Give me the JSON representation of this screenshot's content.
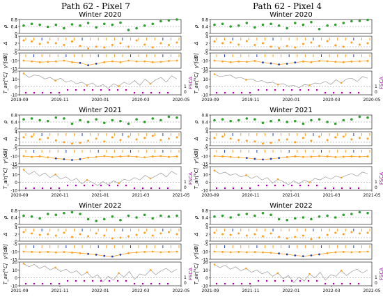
{
  "figure": {
    "columns": [
      "Path 62 - Pixel 7",
      "Path 62 - Pixel 4"
    ]
  },
  "panel_labels": {
    "rho": "ρ",
    "delta": "Δ",
    "gamma": "γ⁰[dB]",
    "tair": "T_air[°C]",
    "fsca": "FSCA"
  },
  "colors": {
    "rho": "#2ca02c",
    "delta": "#ff9f1a",
    "gamma_line": "#ff9f1a",
    "gamma_dots": "#1f3fbf",
    "tair": "#9a9a9a",
    "fsca": "#b000b0",
    "snow_marker": "#1f3fbf",
    "event_marker": "#ff9f1a"
  },
  "chart_data": [
    {
      "type": "line",
      "column": "Path 62 - Pixel 7",
      "title": "Winter 2020",
      "x_ticks": [
        "2019-09",
        "2019-11",
        "2020-01",
        "2020-03",
        "2020-05"
      ],
      "rho": {
        "ylim": [
          0,
          0.8
        ],
        "ticks": [
          "0.8",
          "0.4",
          "0"
        ],
        "values": [
          0.45,
          0.55,
          0.5,
          0.38,
          0.5,
          0.3,
          0.52,
          0.45,
          0.6,
          0.35,
          0.55,
          0.5,
          0.62,
          0.2,
          0.3,
          0.45,
          0.55,
          0.7,
          0.75,
          0.8
        ]
      },
      "delta": {
        "ylim": [
          0,
          4
        ],
        "ticks": [
          "4",
          "2",
          "0"
        ],
        "values": [
          2.8,
          2.5,
          1.8,
          2.2,
          2.0,
          1.5,
          2.5,
          1.2,
          0.5,
          1.0,
          0.8,
          1.5,
          2.0,
          1.0,
          2.8,
          1.6,
          0.8,
          2.0,
          1.5,
          2.2
        ]
      },
      "gamma": {
        "ylim": [
          -15,
          -5
        ],
        "ticks": [
          "-5",
          "-10",
          "-15"
        ],
        "values": [
          -10,
          -10.5,
          -11,
          -10.8,
          -10.5,
          -10,
          -11,
          -11.5,
          -13,
          -12,
          -11,
          -10.5,
          -11,
          -10,
          -10.5,
          -10.5,
          -11,
          -10.8,
          -10.2,
          -10
        ]
      },
      "tair": {
        "ylim": [
          -10,
          20
        ],
        "ticks": [
          "20",
          "10",
          "0",
          "-10"
        ],
        "values": [
          17,
          12,
          15,
          14,
          10,
          12,
          8,
          11,
          6,
          8,
          4,
          6,
          2,
          5,
          0,
          3,
          -2,
          4,
          1,
          6,
          3,
          8,
          2,
          10,
          4,
          9,
          12,
          6,
          14,
          10
        ]
      },
      "fsca_ticks": [
        "1",
        "0"
      ]
    },
    {
      "type": "line",
      "column": "Path 62 - Pixel 4",
      "title": "Winter 2020",
      "x_ticks": [
        "2019-09",
        "2019-11",
        "2020-01",
        "2020-03",
        "2020-05"
      ],
      "rho": {
        "ylim": [
          0,
          0.8
        ],
        "ticks": [
          "0.8",
          "0.4",
          "0"
        ],
        "values": [
          0.5,
          0.55,
          0.4,
          0.45,
          0.6,
          0.35,
          0.5,
          0.55,
          0.45,
          0.3,
          0.6,
          0.5,
          0.65,
          0.25,
          0.45,
          0.5,
          0.6,
          0.7,
          0.72,
          0.78
        ]
      },
      "delta": {
        "ylim": [
          0,
          4
        ],
        "ticks": [
          "4",
          "2",
          "0"
        ],
        "values": [
          2.5,
          2.0,
          2.2,
          1.6,
          2.6,
          1.5,
          2.0,
          1.0,
          0.6,
          1.2,
          0.8,
          1.8,
          2.2,
          1.2,
          2.6,
          1.4,
          1.0,
          2.2,
          1.6,
          2.0
        ]
      },
      "gamma": {
        "ylim": [
          -15,
          -5
        ],
        "ticks": [
          "-5",
          "-10",
          "-15"
        ],
        "values": [
          -10,
          -10.5,
          -11,
          -10.6,
          -10.8,
          -10.2,
          -11.2,
          -11.8,
          -12.5,
          -12,
          -11.2,
          -10.6,
          -11,
          -10.2,
          -10.4,
          -10.8,
          -11,
          -10.6,
          -10.4,
          -10.2
        ]
      },
      "tair": {
        "ylim": [
          -10,
          20
        ],
        "ticks": [
          "20",
          "10",
          "0",
          "-10"
        ],
        "values": [
          16,
          13,
          14,
          15,
          11,
          12,
          9,
          10,
          7,
          8,
          5,
          6,
          3,
          4,
          1,
          2,
          -1,
          3,
          2,
          5,
          4,
          7,
          3,
          9,
          5,
          10,
          11,
          7,
          13,
          11
        ]
      },
      "fsca_ticks": [
        "1",
        "0"
      ]
    },
    {
      "type": "line",
      "column": "Path 62 - Pixel 7",
      "title": "Winter 2021",
      "x_ticks": [
        "2020-09",
        "2020-11",
        "2021-01",
        "2021-03",
        "2021-05"
      ],
      "rho": {
        "ylim": [
          0,
          0.8
        ],
        "ticks": [
          "0.8",
          "0.4",
          "0"
        ],
        "values": [
          0.55,
          0.6,
          0.5,
          0.45,
          0.65,
          0.6,
          0.3,
          0.5,
          0.4,
          0.55,
          0.35,
          0.5,
          0.45,
          0.3,
          0.55,
          0.4,
          0.6,
          0.5,
          0.7,
          0.65
        ]
      },
      "delta": {
        "ylim": [
          0,
          4
        ],
        "ticks": [
          "4",
          "2",
          "0"
        ],
        "values": [
          2.4,
          2.6,
          1.8,
          2.2,
          1.5,
          1.0,
          0.6,
          0.8,
          1.4,
          2.0,
          1.2,
          2.4,
          1.6,
          2.6,
          1.8,
          2.2,
          2.8,
          1.6,
          2.0,
          2.4
        ]
      },
      "gamma": {
        "ylim": [
          -15,
          -5
        ],
        "ticks": [
          "-5",
          "-10",
          "-15"
        ],
        "values": [
          -10,
          -10.5,
          -10.2,
          -10.8,
          -11.5,
          -12,
          -12.5,
          -12,
          -11,
          -10.5,
          -10,
          -10.6,
          -10.2,
          -10,
          -10.4,
          -10.8,
          -10.2,
          -10,
          -10.5,
          -10.2
        ]
      },
      "tair": {
        "ylim": [
          -10,
          20
        ],
        "ticks": [
          "20",
          "10",
          "0",
          "-10"
        ],
        "values": [
          16,
          10,
          14,
          8,
          12,
          6,
          10,
          4,
          7,
          2,
          5,
          -2,
          3,
          0,
          -4,
          1,
          -3,
          2,
          -1,
          4,
          2,
          6,
          3,
          9,
          5,
          8,
          12,
          7,
          14,
          10
        ]
      },
      "fsca_ticks": [
        "1",
        "0"
      ]
    },
    {
      "type": "line",
      "column": "Path 62 - Pixel 4",
      "title": "Winter 2021",
      "x_ticks": [
        "2020-09",
        "2020-11",
        "2021-01",
        "2021-03",
        "2021-05"
      ],
      "rho": {
        "ylim": [
          0,
          0.8
        ],
        "ticks": [
          "0.8",
          "0.4",
          "0"
        ],
        "values": [
          0.5,
          0.55,
          0.45,
          0.5,
          0.6,
          0.55,
          0.35,
          0.45,
          0.5,
          0.4,
          0.45,
          0.3,
          0.5,
          0.55,
          0.4,
          0.3,
          0.5,
          0.55,
          0.7,
          0.65
        ]
      },
      "delta": {
        "ylim": [
          0,
          4
        ],
        "ticks": [
          "4",
          "2",
          "0"
        ],
        "values": [
          2.2,
          2.6,
          2.0,
          1.6,
          1.4,
          1.2,
          0.6,
          0.8,
          1.6,
          1.8,
          1.0,
          2.2,
          1.4,
          2.6,
          1.6,
          2.4,
          2.6,
          1.8,
          2.2,
          2.0
        ]
      },
      "gamma": {
        "ylim": [
          -15,
          -5
        ],
        "ticks": [
          "-5",
          "-10",
          "-15"
        ],
        "values": [
          -10,
          -10.2,
          -10.5,
          -10.8,
          -11.2,
          -11.8,
          -12.2,
          -11.8,
          -11.2,
          -10.6,
          -10.2,
          -10.5,
          -10.4,
          -10,
          -10.2,
          -10.6,
          -10.4,
          -10.2,
          -10.4,
          -10.2
        ]
      },
      "tair": {
        "ylim": [
          -10,
          20
        ],
        "ticks": [
          "20",
          "10",
          "0",
          "-10"
        ],
        "values": [
          15,
          11,
          13,
          9,
          11,
          7,
          9,
          5,
          8,
          3,
          6,
          -1,
          4,
          1,
          -3,
          2,
          -2,
          3,
          0,
          5,
          3,
          7,
          4,
          8,
          6,
          9,
          11,
          8,
          13,
          11
        ]
      },
      "fsca_ticks": [
        "1",
        "0"
      ]
    },
    {
      "type": "line",
      "column": "Path 62 - Pixel 7",
      "title": "Winter 2022",
      "x_ticks": [
        "2021-09",
        "2021-11",
        "2022-01",
        "2022-03",
        "2022-05"
      ],
      "rho": {
        "ylim": [
          0,
          0.8
        ],
        "ticks": [
          "0.8",
          "0.4",
          "0"
        ],
        "values": [
          0.5,
          0.45,
          0.35,
          0.6,
          0.55,
          0.65,
          0.7,
          0.6,
          0.3,
          0.2,
          0.3,
          0.45,
          0.25,
          0.5,
          0.4,
          0.55,
          0.35,
          0.5,
          0.45,
          0.5
        ]
      },
      "delta": {
        "ylim": [
          0,
          4
        ],
        "ticks": [
          "4",
          "2",
          "0"
        ],
        "values": [
          2.6,
          2.2,
          1.8,
          2.0,
          1.6,
          2.4,
          1.2,
          2.0,
          1.4,
          2.2,
          1.6,
          0.8,
          1.0,
          1.4,
          1.8,
          2.4,
          1.6,
          2.2,
          2.6,
          2.0
        ]
      },
      "gamma": {
        "ylim": [
          -15,
          -5
        ],
        "ticks": [
          "-5",
          "-10",
          "-15"
        ],
        "values": [
          -10,
          -10.2,
          -10.4,
          -10.2,
          -10.5,
          -10.3,
          -10.6,
          -11,
          -11.5,
          -12,
          -12.8,
          -13.2,
          -12,
          -11,
          -10.5,
          -10.2,
          -10,
          -10.4,
          -10.2,
          -10
        ]
      },
      "tair": {
        "ylim": [
          -10,
          20
        ],
        "ticks": [
          "20",
          "10",
          "0",
          "-10"
        ],
        "values": [
          18,
          14,
          17,
          12,
          15,
          10,
          13,
          8,
          11,
          6,
          9,
          3,
          7,
          0,
          4,
          -5,
          2,
          -3,
          6,
          1,
          8,
          -2,
          5,
          3,
          10,
          4,
          9,
          12,
          7,
          11
        ]
      },
      "fsca_ticks": [
        "1",
        "0"
      ]
    },
    {
      "type": "line",
      "column": "Path 62 - Pixel 4",
      "title": "Winter 2022",
      "x_ticks": [
        "2021-09",
        "2021-11",
        "2022-01",
        "2022-03",
        "2022-05"
      ],
      "rho": {
        "ylim": [
          0,
          0.8
        ],
        "ticks": [
          "0.8",
          "0.4",
          "0"
        ],
        "values": [
          0.45,
          0.5,
          0.4,
          0.55,
          0.6,
          0.5,
          0.65,
          0.55,
          0.3,
          0.25,
          0.35,
          0.4,
          0.3,
          0.45,
          0.5,
          0.4,
          0.55,
          0.6,
          0.7,
          0.65
        ]
      },
      "delta": {
        "ylim": [
          0,
          4
        ],
        "ticks": [
          "4",
          "2",
          "0"
        ],
        "values": [
          2.4,
          2.0,
          1.8,
          2.2,
          1.6,
          2.0,
          1.4,
          2.2,
          1.2,
          0.8,
          1.2,
          1.6,
          0.6,
          1.0,
          1.8,
          2.4,
          2.0,
          2.6,
          2.2,
          2.4
        ]
      },
      "gamma": {
        "ylim": [
          -15,
          -5
        ],
        "ticks": [
          "-5",
          "-10",
          "-15"
        ],
        "values": [
          -10,
          -10.2,
          -10.4,
          -10.2,
          -10.4,
          -10.3,
          -10.5,
          -10.8,
          -11.2,
          -11.8,
          -12.5,
          -13,
          -12.5,
          -11.8,
          -11,
          -10.4,
          -10.2,
          -10.4,
          -10.2,
          -10
        ]
      },
      "tair": {
        "ylim": [
          -10,
          20
        ],
        "ticks": [
          "20",
          "10",
          "0",
          "-10"
        ],
        "values": [
          17,
          13,
          16,
          11,
          14,
          9,
          12,
          7,
          10,
          5,
          8,
          2,
          6,
          -1,
          3,
          -6,
          1,
          -4,
          5,
          0,
          7,
          -3,
          4,
          2,
          9,
          3,
          8,
          11,
          6,
          10
        ]
      },
      "fsca_ticks": [
        "1",
        "0"
      ]
    }
  ]
}
